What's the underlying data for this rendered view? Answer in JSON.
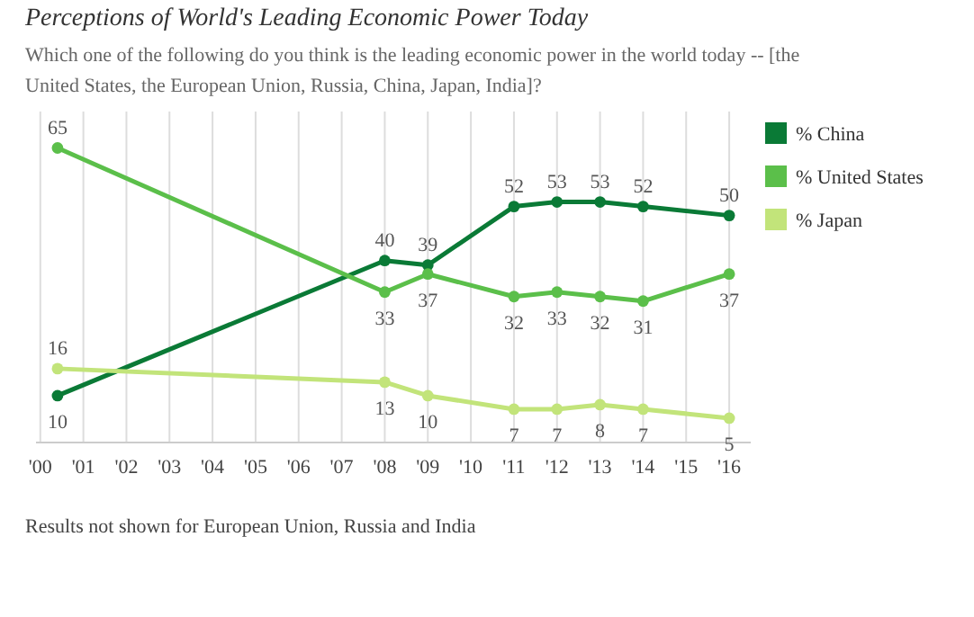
{
  "chart_data": {
    "type": "line",
    "title": "Perceptions of World's Leading Economic Power Today",
    "subtitle": "Which one of the following do you think is the leading economic power in the world today -- [the United States, the European Union, Russia, China, Japan, India]?",
    "x": [
      2000.4,
      2008,
      2009,
      2011,
      2012,
      2013,
      2014,
      2016
    ],
    "xlim": [
      1999.9,
      2016.5
    ],
    "xticks": [
      {
        "value": 2000,
        "label": "'00"
      },
      {
        "value": 2001,
        "label": "'01"
      },
      {
        "value": 2002,
        "label": "'02"
      },
      {
        "value": 2003,
        "label": "'03"
      },
      {
        "value": 2004,
        "label": "'04"
      },
      {
        "value": 2005,
        "label": "'05"
      },
      {
        "value": 2006,
        "label": "'06"
      },
      {
        "value": 2007,
        "label": "'07"
      },
      {
        "value": 2008,
        "label": "'08"
      },
      {
        "value": 2009,
        "label": "'09"
      },
      {
        "value": 2010,
        "label": "'10"
      },
      {
        "value": 2011,
        "label": "'11"
      },
      {
        "value": 2012,
        "label": "'12"
      },
      {
        "value": 2013,
        "label": "'13"
      },
      {
        "value": 2014,
        "label": "'14"
      },
      {
        "value": 2015,
        "label": "'15"
      },
      {
        "value": 2016,
        "label": "'16"
      }
    ],
    "series": [
      {
        "name": "% China",
        "color": "#0a7a36",
        "values": [
          10,
          40,
          39,
          52,
          53,
          53,
          52,
          50
        ]
      },
      {
        "name": "% United States",
        "color": "#5bbf4a",
        "values": [
          65,
          33,
          37,
          32,
          33,
          32,
          31,
          37
        ]
      },
      {
        "name": "% Japan",
        "color": "#c2e47a",
        "values": [
          16,
          13,
          10,
          7,
          7,
          8,
          7,
          5
        ]
      }
    ],
    "data_labels": true,
    "marker": "circle",
    "grid": "x",
    "legend": "right",
    "tick_labels": "x",
    "annotations": [
      "Results not shown for European Union, Russia and India"
    ]
  }
}
